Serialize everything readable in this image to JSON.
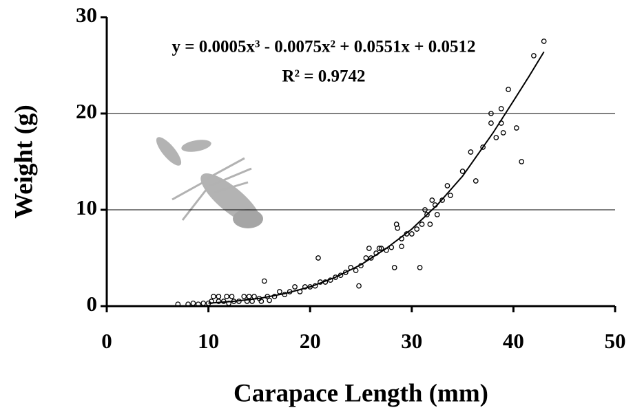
{
  "chart_data": {
    "type": "scatter",
    "x_label": "Carapace Length (mm)",
    "y_label": "Weight (g)",
    "annotations": [
      "y = 0.0005x³ - 0.0075x² + 0.0551x + 0.0512",
      "R² = 0.9742"
    ],
    "xlim": [
      0,
      50
    ],
    "ylim": [
      0,
      30
    ],
    "xticks": [
      0,
      10,
      20,
      30,
      40,
      50
    ],
    "yticks": [
      0,
      10,
      20,
      30
    ],
    "grid": true,
    "color": "#000000",
    "series": [
      {
        "x": [
          7,
          8,
          8.5,
          9,
          9.5,
          10,
          10.3,
          10.5,
          11,
          11,
          11.5,
          11.8,
          12,
          12.3,
          12.5,
          13,
          13.5,
          13.8,
          14,
          14.3,
          14.5,
          15,
          15.2,
          15.5,
          15.8,
          16,
          16.5,
          17,
          17.5,
          18,
          18.5,
          19,
          19.5,
          20,
          20.5,
          20.8,
          21,
          21.5,
          22,
          22.5,
          23,
          23.5,
          24,
          24.5,
          24.8,
          25,
          25.5,
          25.8,
          26,
          26.5,
          26.8,
          27,
          27.5,
          28,
          28.3,
          28.5,
          28.6,
          29,
          29,
          29.5,
          30,
          30.5,
          30.8,
          31,
          31.3,
          31.5,
          31.8,
          32,
          32.3,
          32.5,
          33,
          33.5,
          33.8,
          35,
          35.8,
          36.3,
          37,
          37.8,
          37.8,
          38.3,
          38.8,
          38.8,
          39,
          39.5,
          40.3,
          40.8,
          42,
          43
        ],
        "values": [
          0.2,
          0.2,
          0.3,
          0.2,
          0.3,
          0.3,
          0.5,
          1,
          0.5,
          1,
          0.5,
          1,
          0.3,
          1,
          0.5,
          0.5,
          1,
          0.5,
          1,
          0.5,
          1,
          0.8,
          0.5,
          2.6,
          1,
          0.6,
          1,
          1.5,
          1.2,
          1.5,
          2,
          1.5,
          2,
          2,
          2.1,
          5,
          2.5,
          2.5,
          2.7,
          3,
          3.2,
          3.5,
          4,
          3.7,
          2.1,
          4.2,
          5,
          6,
          5,
          5.5,
          6,
          6,
          5.8,
          6.1,
          4,
          8.5,
          8.1,
          6.2,
          7,
          7.5,
          7.5,
          8,
          4,
          8.5,
          10,
          9.5,
          8.5,
          11,
          10.5,
          9.5,
          11,
          12.5,
          11.5,
          14,
          16,
          13,
          16.5,
          20,
          19,
          17.5,
          20.5,
          19,
          18,
          22.5,
          18.5,
          15,
          26,
          27.5
        ]
      }
    ],
    "trend": {
      "x": [
        10,
        12.5,
        15,
        17.5,
        20,
        22.5,
        25,
        27.5,
        30,
        32.5,
        35,
        38,
        40,
        41.5,
        43
      ],
      "values": [
        0.3,
        0.5,
        0.8,
        1.3,
        2,
        3,
        4.3,
        6,
        8,
        10.5,
        13.5,
        18,
        21.3,
        23.8,
        26.4
      ]
    }
  }
}
